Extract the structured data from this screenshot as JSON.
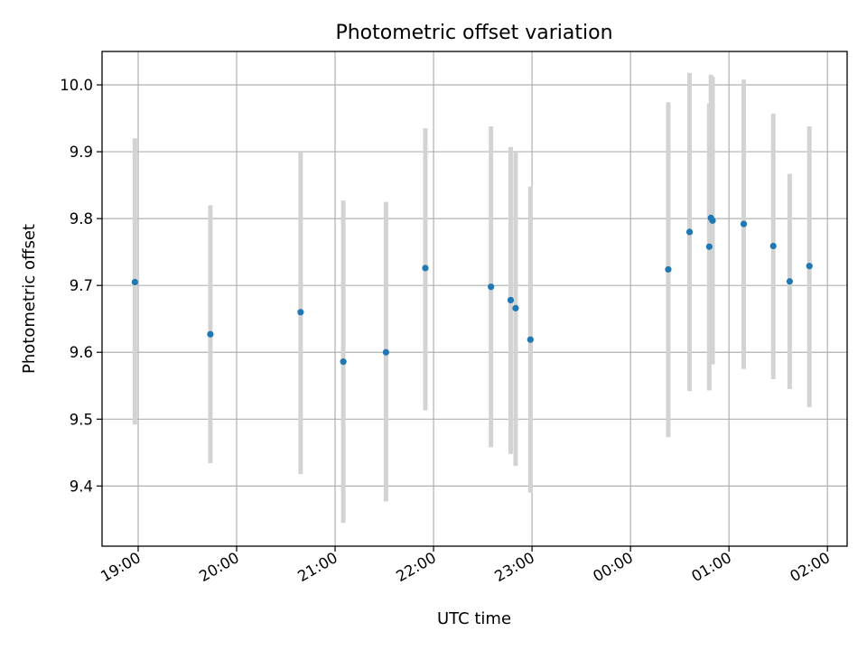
{
  "chart_data": {
    "type": "scatter",
    "title": "Photometric offset variation",
    "xlabel": "UTC time",
    "ylabel": "Photometric offset",
    "x_unit": "UTC",
    "x_tick_labels": [
      "19:00",
      "20:00",
      "21:00",
      "22:00",
      "23:00",
      "00:00",
      "01:00",
      "02:00"
    ],
    "y_tick_labels": [
      "9.4",
      "9.5",
      "9.6",
      "9.7",
      "9.8",
      "9.9",
      "10.0"
    ],
    "y_ticks": [
      9.4,
      9.5,
      9.6,
      9.7,
      9.8,
      9.9,
      10.0
    ],
    "xlim": [
      "18:38",
      "02:12"
    ],
    "ylim": [
      9.31,
      10.05
    ],
    "grid": true,
    "colors": {
      "point": "#1f77b4",
      "errorbar": "#d3d3d3",
      "grid": "#b0b0b0"
    },
    "points": [
      {
        "time": "18:58",
        "y": 9.705,
        "ymin": 9.492,
        "ymax": 9.92
      },
      {
        "time": "19:44",
        "y": 9.627,
        "ymin": 9.434,
        "ymax": 9.82
      },
      {
        "time": "20:39",
        "y": 9.66,
        "ymin": 9.418,
        "ymax": 9.9
      },
      {
        "time": "21:05",
        "y": 9.586,
        "ymin": 9.345,
        "ymax": 9.827
      },
      {
        "time": "21:31",
        "y": 9.6,
        "ymin": 9.377,
        "ymax": 9.825
      },
      {
        "time": "21:55",
        "y": 9.726,
        "ymin": 9.513,
        "ymax": 9.935
      },
      {
        "time": "22:35",
        "y": 9.698,
        "ymin": 9.458,
        "ymax": 9.938
      },
      {
        "time": "22:47",
        "y": 9.678,
        "ymin": 9.448,
        "ymax": 9.907
      },
      {
        "time": "22:50",
        "y": 9.666,
        "ymin": 9.43,
        "ymax": 9.9
      },
      {
        "time": "22:59",
        "y": 9.619,
        "ymin": 9.39,
        "ymax": 9.848
      },
      {
        "time": "00:23",
        "y": 9.724,
        "ymin": 9.473,
        "ymax": 9.974
      },
      {
        "time": "00:36",
        "y": 9.78,
        "ymin": 9.542,
        "ymax": 10.018
      },
      {
        "time": "00:48",
        "y": 9.758,
        "ymin": 9.543,
        "ymax": 9.972
      },
      {
        "time": "00:49",
        "y": 9.801,
        "ymin": 9.588,
        "ymax": 10.015
      },
      {
        "time": "00:50",
        "y": 9.797,
        "ymin": 9.582,
        "ymax": 10.012
      },
      {
        "time": "01:09",
        "y": 9.792,
        "ymin": 9.575,
        "ymax": 10.008
      },
      {
        "time": "01:27",
        "y": 9.759,
        "ymin": 9.56,
        "ymax": 9.957
      },
      {
        "time": "01:37",
        "y": 9.706,
        "ymin": 9.545,
        "ymax": 9.867
      },
      {
        "time": "01:49",
        "y": 9.729,
        "ymin": 9.518,
        "ymax": 9.938
      }
    ]
  }
}
